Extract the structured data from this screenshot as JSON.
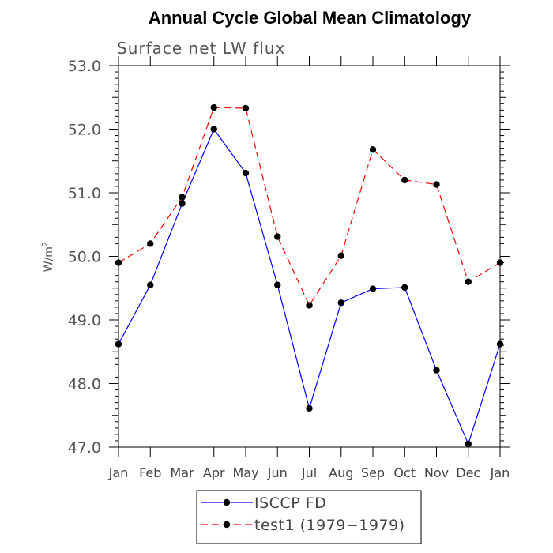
{
  "chart_data": {
    "type": "line",
    "title": "Annual Cycle Global Mean Climatology",
    "subtitle": "Surface net LW flux",
    "ylabel": "W/m²",
    "ylabel_base": "W/m",
    "ylabel_sup": "2",
    "xlabel": "",
    "categories": [
      "Jan",
      "Feb",
      "Mar",
      "Apr",
      "May",
      "Jun",
      "Jul",
      "Aug",
      "Sep",
      "Oct",
      "Nov",
      "Dec",
      "Jan"
    ],
    "ylim": [
      47.0,
      53.0
    ],
    "yticks": [
      "47.0",
      "48.0",
      "49.0",
      "50.0",
      "51.0",
      "52.0",
      "53.0"
    ],
    "grid": false,
    "legend_position": "bottom",
    "series": [
      {
        "name": "ISCCP FD",
        "color": "#0000ff",
        "style": "solid",
        "marker": "filled-circle",
        "values": [
          48.62,
          49.55,
          50.83,
          52.0,
          51.31,
          49.55,
          47.61,
          49.27,
          49.49,
          49.51,
          48.21,
          47.05,
          48.62
        ]
      },
      {
        "name": "test1 (1979−1979)",
        "color": "#ff0000",
        "style": "dashed",
        "marker": "filled-circle",
        "values": [
          49.9,
          50.2,
          50.93,
          52.34,
          52.33,
          50.31,
          49.23,
          50.01,
          51.68,
          51.2,
          51.13,
          49.6,
          49.9
        ]
      }
    ]
  }
}
